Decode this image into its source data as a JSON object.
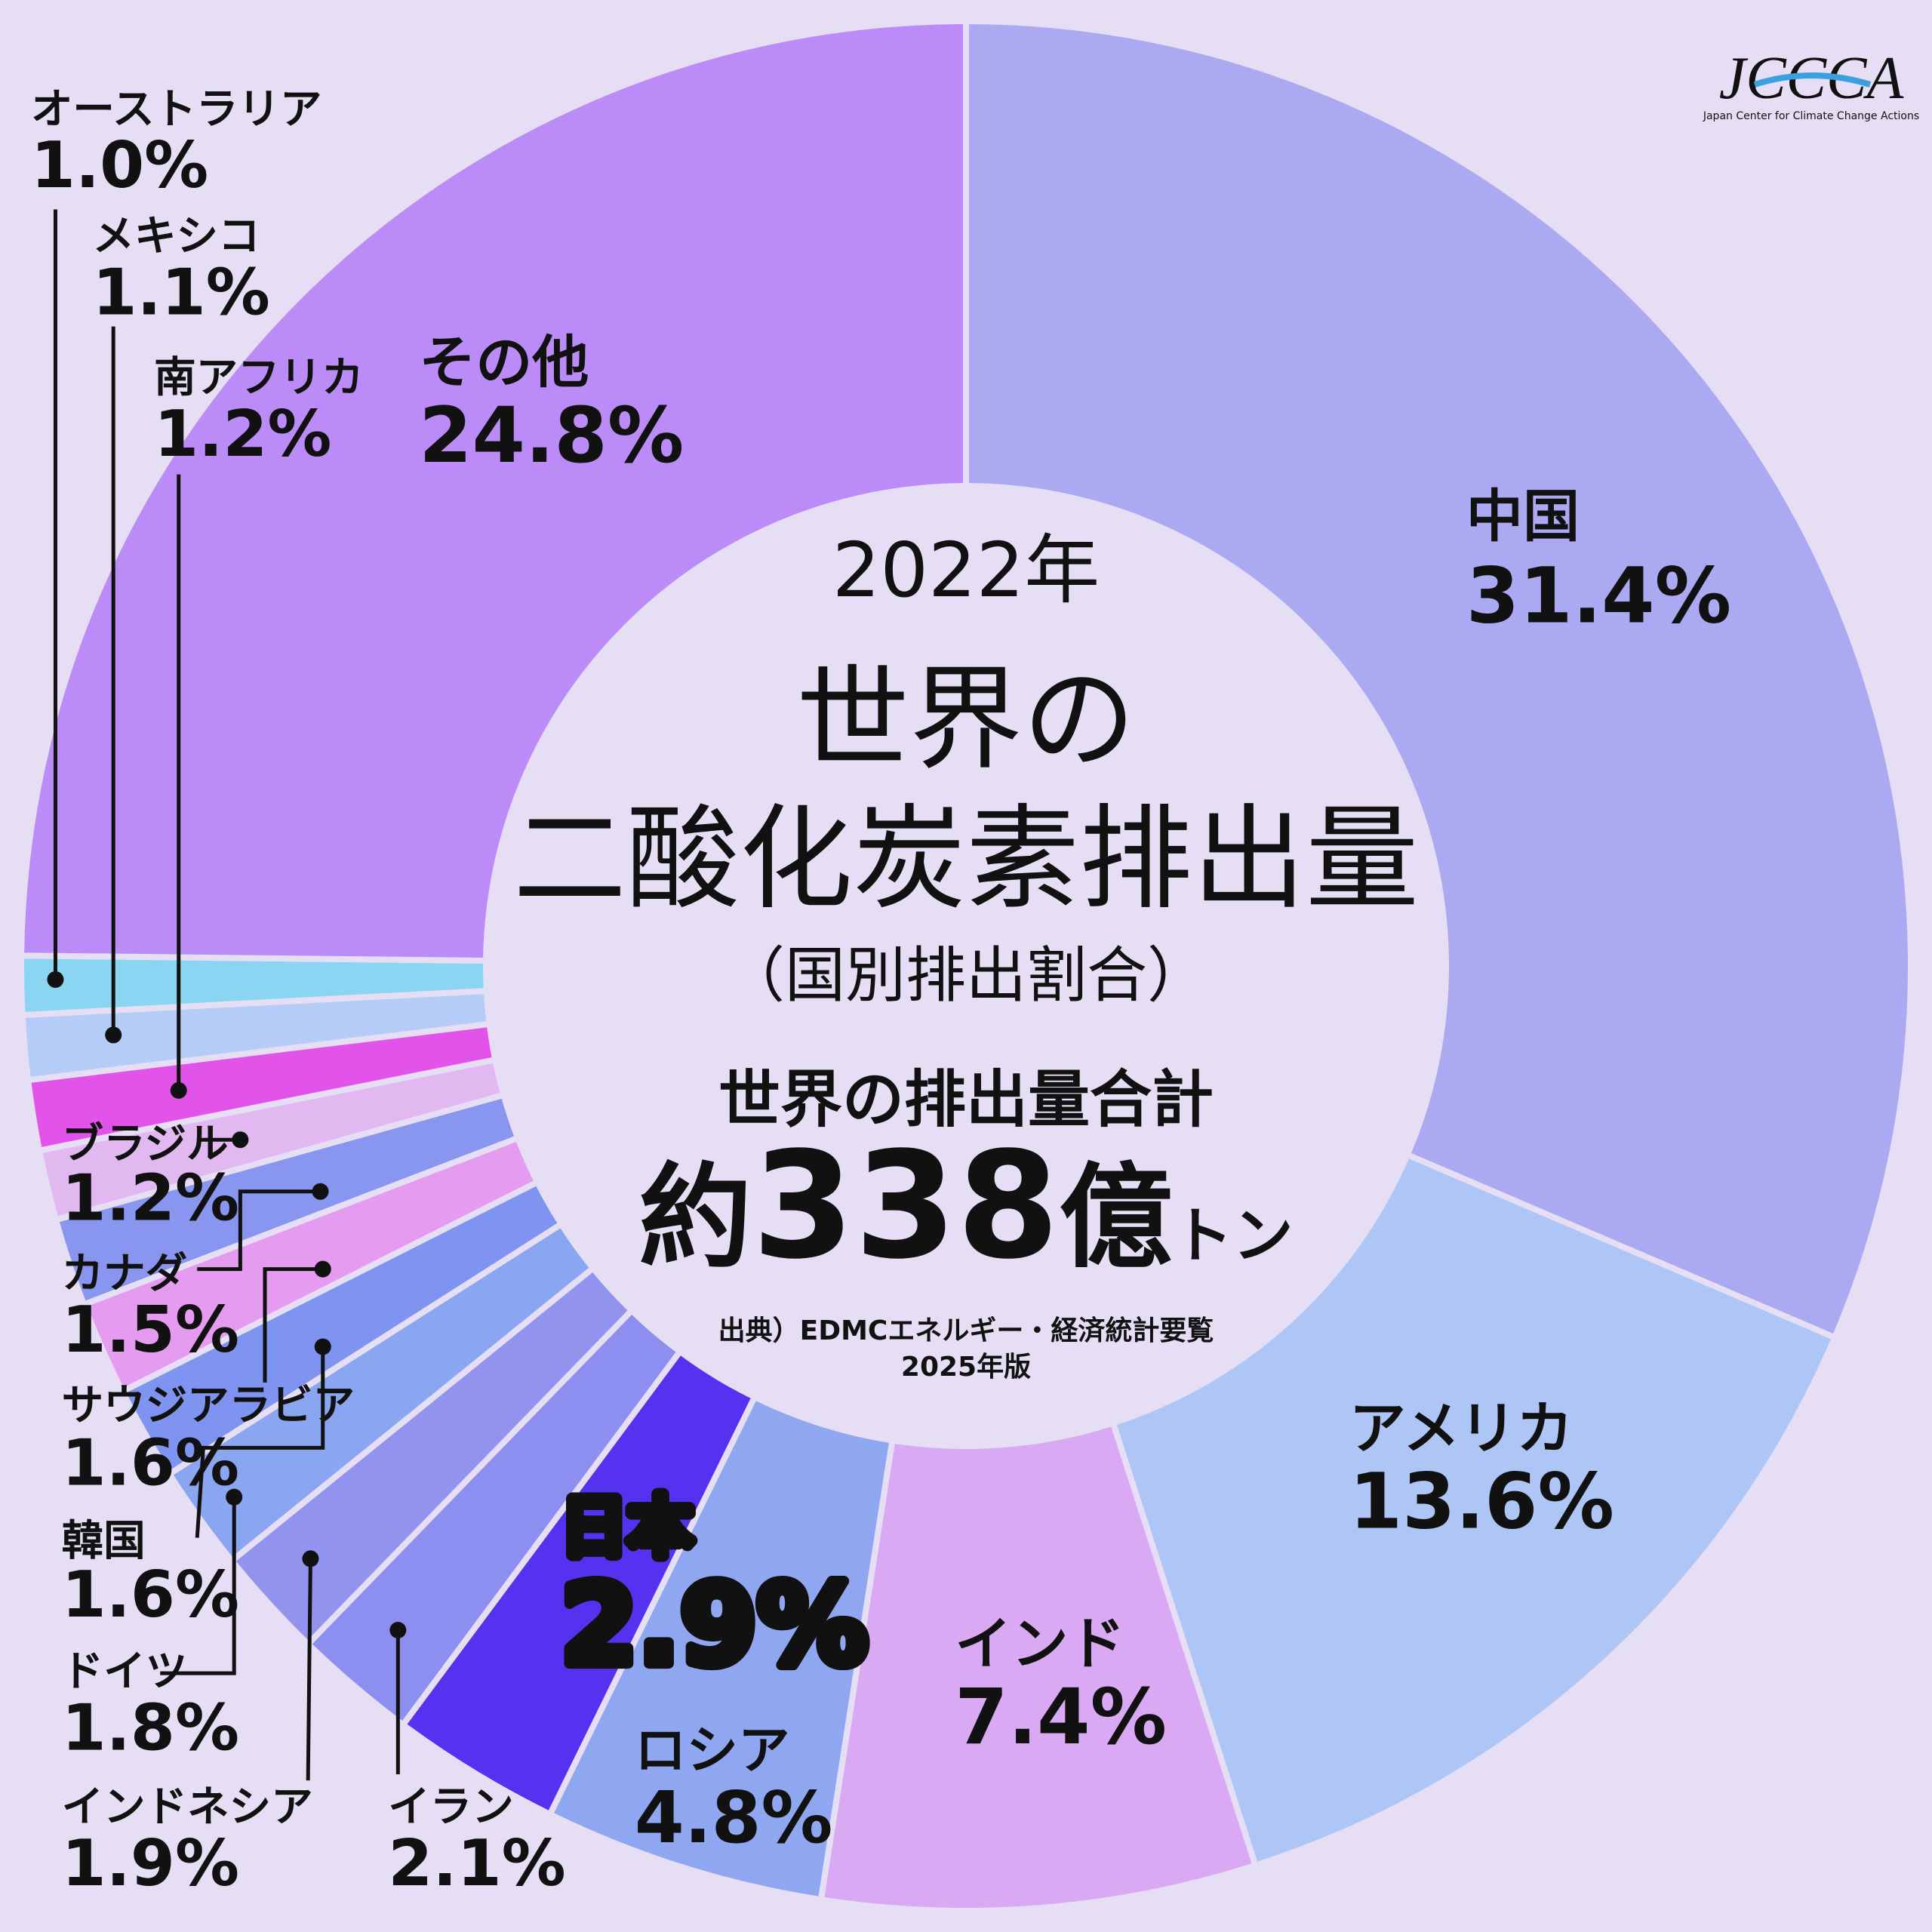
{
  "chart_data": {
    "type": "donut",
    "year_label": "2022年",
    "title_lines": [
      "世界の",
      "二酸化炭素排出量"
    ],
    "subtitle": "（国別排出割合）",
    "total_label": "世界の排出量合計",
    "total_prefix": "約",
    "total_number": 338,
    "total_unit_big": "億",
    "total_unit_small": "トン",
    "source": "出典）EDMCエネルギー・経済統計要覧",
    "source_edition": "2025年版",
    "logo": "JCCCA",
    "logo_subtitle": "Japan Center for Climate Change Actions",
    "categories": [
      "中国",
      "アメリカ",
      "インド",
      "ロシア",
      "日本",
      "イラン",
      "インドネシア",
      "ドイツ",
      "韓国",
      "サウジアラビア",
      "カナダ",
      "ブラジル",
      "南アフリカ",
      "メキシコ",
      "オーストラリア",
      "その他"
    ],
    "values": [
      31.4,
      13.6,
      7.4,
      4.8,
      2.9,
      2.1,
      1.9,
      1.8,
      1.6,
      1.6,
      1.5,
      1.2,
      1.2,
      1.1,
      1.0,
      24.8
    ],
    "value_labels": [
      "31.4%",
      "13.6%",
      "7.4%",
      "4.8%",
      "2.9%",
      "2.1%",
      "1.9%",
      "1.8%",
      "1.6%",
      "1.6%",
      "1.5%",
      "1.2%",
      "1.2%",
      "1.1%",
      "1.0%",
      "24.8%"
    ],
    "colors": [
      "#aaa9f2",
      "#aec6f6",
      "#d9a9f3",
      "#8fa6f1",
      "#5531f0",
      "#8c8ff0",
      "#9193ee",
      "#8aa6f1",
      "#7f94f0",
      "#e59cf0",
      "#8896f0",
      "#e2b8f1",
      "#e253ea",
      "#b5cdf6",
      "#7e9af0",
      "#bb8cf8"
    ],
    "australia_color": "#8ad6f2"
  }
}
